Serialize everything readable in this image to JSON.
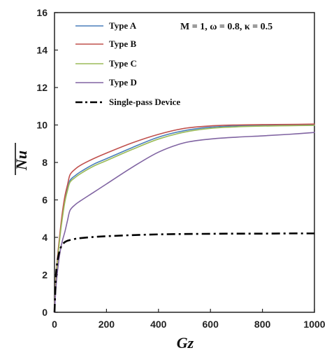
{
  "chart_data": {
    "type": "line",
    "title": "",
    "xlabel": "Gz",
    "ylabel": "Nu",
    "xlim": [
      0,
      1000
    ],
    "ylim": [
      0,
      16
    ],
    "x_ticks": [
      0,
      200,
      400,
      600,
      800,
      1000
    ],
    "y_ticks": [
      0,
      2,
      4,
      6,
      8,
      10,
      12,
      14,
      16
    ],
    "grid": false,
    "legend_position": "top-left",
    "annotation": "M = 1, ω = 0.8, κ = 0.5",
    "series": [
      {
        "name": "Type A",
        "color": "#4a7ebb",
        "dash": "solid",
        "x": [
          0,
          5,
          10,
          20,
          30,
          40,
          50,
          60,
          80,
          100,
          150,
          200,
          300,
          400,
          500,
          600,
          700,
          800,
          900,
          1000
        ],
        "y": [
          0,
          1.6,
          2.6,
          4.0,
          5.1,
          6.0,
          6.6,
          7.05,
          7.3,
          7.5,
          7.9,
          8.2,
          8.8,
          9.35,
          9.7,
          9.88,
          9.95,
          9.98,
          10.0,
          10.02
        ]
      },
      {
        "name": "Type B",
        "color": "#c0504d",
        "dash": "solid",
        "x": [
          0,
          5,
          10,
          20,
          30,
          40,
          50,
          60,
          80,
          100,
          150,
          200,
          300,
          400,
          500,
          600,
          700,
          800,
          900,
          1000
        ],
        "y": [
          0,
          1.7,
          2.7,
          4.1,
          5.3,
          6.2,
          6.8,
          7.35,
          7.65,
          7.85,
          8.2,
          8.5,
          9.05,
          9.5,
          9.82,
          9.95,
          10.0,
          10.02,
          10.03,
          10.05
        ]
      },
      {
        "name": "Type C",
        "color": "#9bbb59",
        "dash": "solid",
        "x": [
          0,
          5,
          10,
          20,
          30,
          40,
          50,
          60,
          80,
          100,
          150,
          200,
          300,
          400,
          500,
          600,
          700,
          800,
          900,
          1000
        ],
        "y": [
          0,
          1.5,
          2.5,
          3.9,
          5.0,
          5.9,
          6.5,
          6.95,
          7.2,
          7.4,
          7.8,
          8.1,
          8.7,
          9.25,
          9.62,
          9.82,
          9.9,
          9.94,
          9.96,
          9.98
        ]
      },
      {
        "name": "Type D",
        "color": "#8064a2",
        "dash": "solid",
        "x": [
          0,
          5,
          10,
          20,
          30,
          40,
          50,
          60,
          80,
          100,
          150,
          200,
          300,
          400,
          500,
          600,
          700,
          800,
          900,
          1000
        ],
        "y": [
          0,
          1.2,
          2.0,
          3.1,
          3.8,
          4.3,
          4.9,
          5.45,
          5.75,
          5.95,
          6.4,
          6.85,
          7.75,
          8.55,
          9.05,
          9.25,
          9.35,
          9.42,
          9.5,
          9.6
        ]
      },
      {
        "name": "Single-pass Device",
        "color": "#000000",
        "dash": "dashdot",
        "x": [
          0,
          5,
          10,
          20,
          30,
          40,
          50,
          60,
          80,
          100,
          150,
          200,
          300,
          400,
          500,
          600,
          700,
          800,
          900,
          1000
        ],
        "y": [
          0,
          1.8,
          2.6,
          3.3,
          3.6,
          3.75,
          3.82,
          3.86,
          3.92,
          3.96,
          4.02,
          4.06,
          4.12,
          4.16,
          4.18,
          4.19,
          4.2,
          4.2,
          4.21,
          4.21
        ]
      }
    ]
  }
}
